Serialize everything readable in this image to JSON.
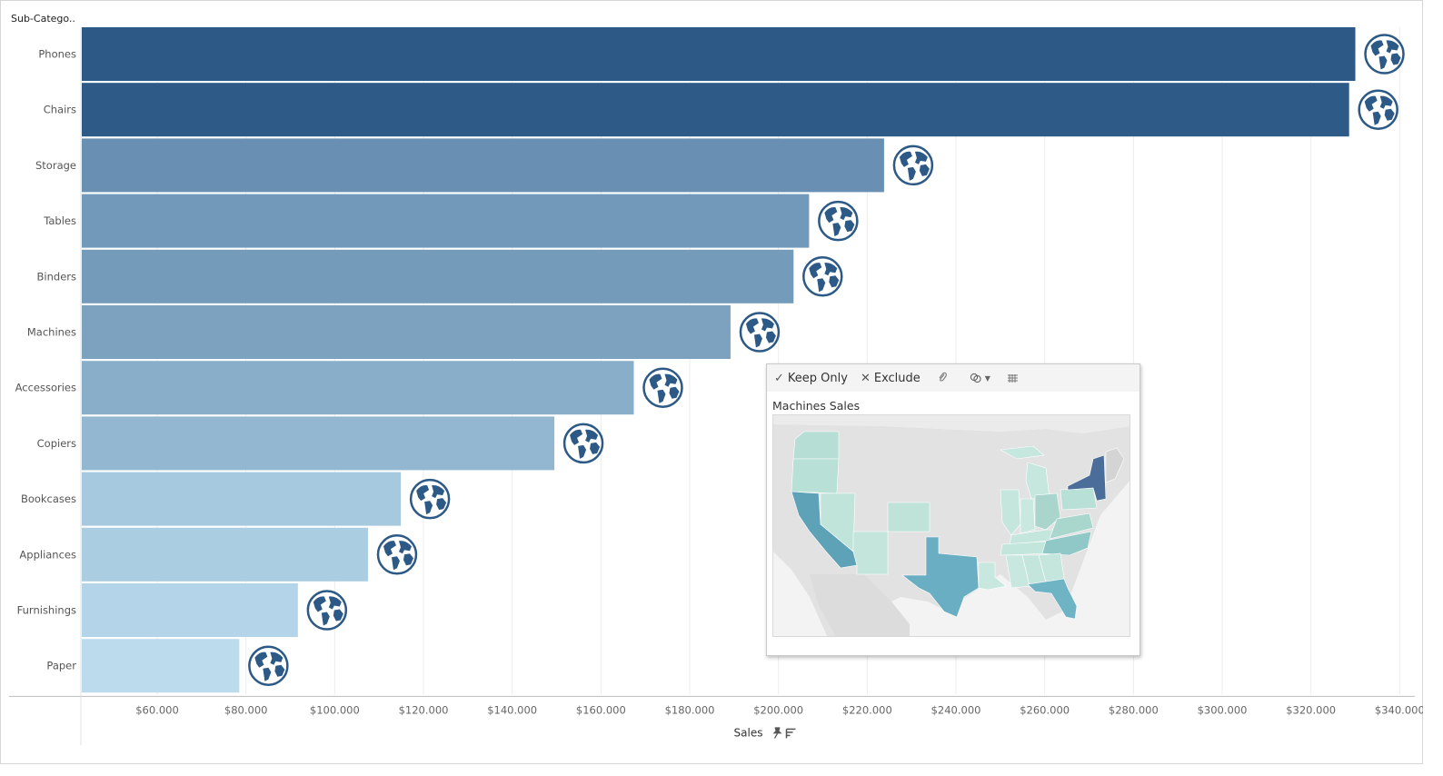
{
  "chart_data": {
    "type": "bar",
    "orientation": "horizontal",
    "dimension_header": "Sub-Catego..",
    "categories": [
      "Phones",
      "Chairs",
      "Storage",
      "Tables",
      "Binders",
      "Machines",
      "Accessories",
      "Copiers",
      "Bookcases",
      "Appliances",
      "Furnishings",
      "Paper"
    ],
    "values": [
      330000,
      328600,
      223800,
      206900,
      203400,
      189200,
      167400,
      149500,
      114900,
      107500,
      91700,
      78500
    ],
    "xlabel": "Sales",
    "xlim": [
      43000,
      343000
    ],
    "x_ticks": [
      "$60.000",
      "$80.000",
      "$100.000",
      "$120.000",
      "$140.000",
      "$160.000",
      "$180.000",
      "$200.000",
      "$220.000",
      "$240.000",
      "$260.000",
      "$280.000",
      "$300.000",
      "$320.000",
      "$340.000"
    ],
    "x_tick_values": [
      60000,
      80000,
      100000,
      120000,
      140000,
      160000,
      180000,
      200000,
      220000,
      240000,
      260000,
      280000,
      300000,
      320000,
      340000
    ],
    "color_range": [
      "#bcdcee",
      "#2c5986"
    ],
    "grid": "vertical",
    "marker_icon": "globe-icon"
  },
  "tooltip": {
    "actions": {
      "keep_only": "Keep Only",
      "exclude": "Exclude"
    },
    "icons": [
      "check-icon",
      "x-icon",
      "paperclip-icon",
      "group-icon",
      "chevron-down-icon",
      "view-data-icon"
    ],
    "title": "Machines Sales",
    "map": {
      "type": "filled-map",
      "region": "United States",
      "color_range": [
        "#c4e6dc",
        "#2c5986"
      ]
    }
  },
  "axis_icons": [
    "pin-icon",
    "sort-icon"
  ]
}
